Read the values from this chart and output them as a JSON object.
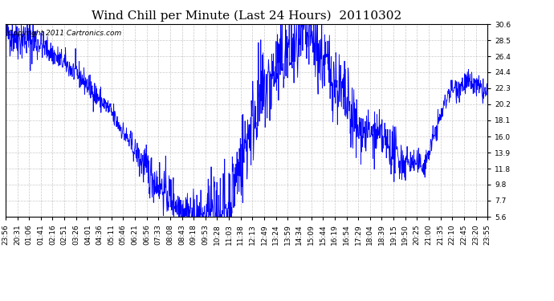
{
  "title": "Wind Chill per Minute (Last 24 Hours)  20110302",
  "copyright_text": "Copyright 2011 Cartronics.com",
  "line_color": "#0000FF",
  "bg_color": "#FFFFFF",
  "plot_bg_color": "#FFFFFF",
  "grid_color": "#BBBBBB",
  "yticks": [
    5.6,
    7.7,
    9.8,
    11.8,
    13.9,
    16.0,
    18.1,
    20.2,
    22.3,
    24.4,
    26.4,
    28.5,
    30.6
  ],
  "ylim": [
    5.6,
    30.6
  ],
  "xtick_labels": [
    "23:56",
    "20:31",
    "01:06",
    "01:41",
    "02:16",
    "02:51",
    "03:26",
    "04:01",
    "04:36",
    "05:11",
    "05:46",
    "06:21",
    "06:56",
    "07:33",
    "08:08",
    "08:43",
    "09:18",
    "09:53",
    "10:28",
    "11:03",
    "11:38",
    "12:13",
    "12:49",
    "13:24",
    "13:59",
    "14:34",
    "15:09",
    "15:44",
    "16:19",
    "16:54",
    "17:29",
    "18:04",
    "18:39",
    "19:15",
    "19:50",
    "20:25",
    "21:00",
    "21:35",
    "22:10",
    "22:45",
    "23:20",
    "23:55"
  ],
  "title_fontsize": 11,
  "tick_fontsize": 6.5,
  "copyright_fontsize": 6.5,
  "line_width": 0.6
}
